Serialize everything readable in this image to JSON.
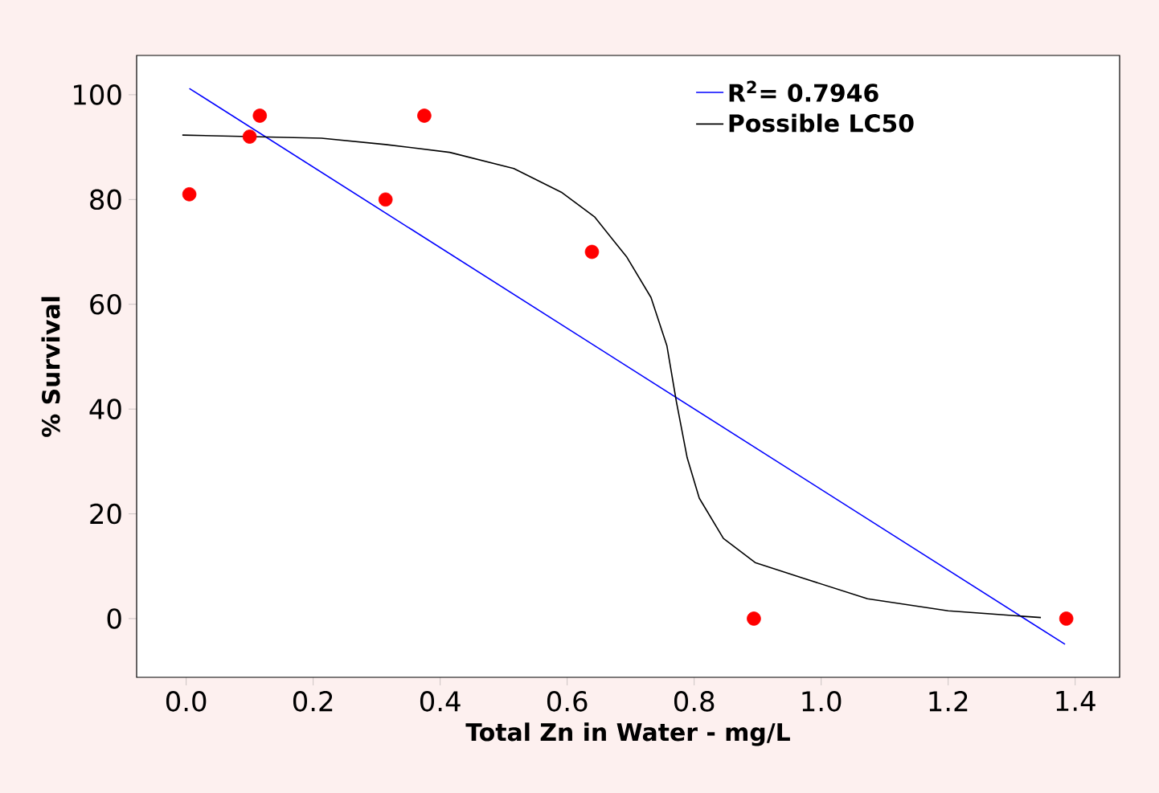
{
  "chart_data": {
    "type": "scatter",
    "xlabel": "Total Zn in Water - mg/L",
    "ylabel": "% Survival",
    "xlim": [
      -0.078,
      1.47
    ],
    "ylim": [
      -11.2,
      107.5
    ],
    "xticks": [
      {
        "value": 0,
        "label": "0.0"
      },
      {
        "value": 0.2,
        "label": "0.2"
      },
      {
        "value": 0.4,
        "label": "0.4"
      },
      {
        "value": 0.6,
        "label": "0.6"
      },
      {
        "value": 0.8,
        "label": "0.8"
      },
      {
        "value": 1.0,
        "label": "1.0"
      },
      {
        "value": 1.2,
        "label": "1.2"
      },
      {
        "value": 1.4,
        "label": "1.4"
      }
    ],
    "yticks": [
      0,
      20,
      40,
      60,
      80,
      100
    ],
    "legend": "top right",
    "series": [
      {
        "color": "#ff0000",
        "marker": "circle",
        "x": [
          0.005,
          0.1,
          0.116,
          0.314,
          0.375,
          0.639,
          0.894,
          1.386
        ],
        "values": [
          81,
          92,
          96,
          80,
          96,
          70,
          0,
          0
        ]
      },
      {
        "type": "line",
        "name": "R$^{2}$= 0.7946",
        "color": "#0000ff",
        "marker": "none",
        "x": [
          0.005,
          1.384
        ],
        "values": [
          101.2,
          -4.9
        ]
      },
      {
        "type": "line",
        "name": "Possible LC50",
        "color": "#000000",
        "marker": "none",
        "x": [
          -0.006,
          0.213,
          0.314,
          0.415,
          0.516,
          0.592,
          0.643,
          0.694,
          0.732,
          0.757,
          0.772,
          0.789,
          0.808,
          0.846,
          0.896,
          0.972,
          1.073,
          1.2,
          1.346
        ],
        "values": [
          92.3,
          91.7,
          90.5,
          89,
          85.9,
          81.3,
          76.7,
          69,
          61.3,
          52.1,
          41.4,
          30.7,
          23,
          15.3,
          10.7,
          7.7,
          3.8,
          1.5,
          0.2
        ]
      }
    ]
  }
}
